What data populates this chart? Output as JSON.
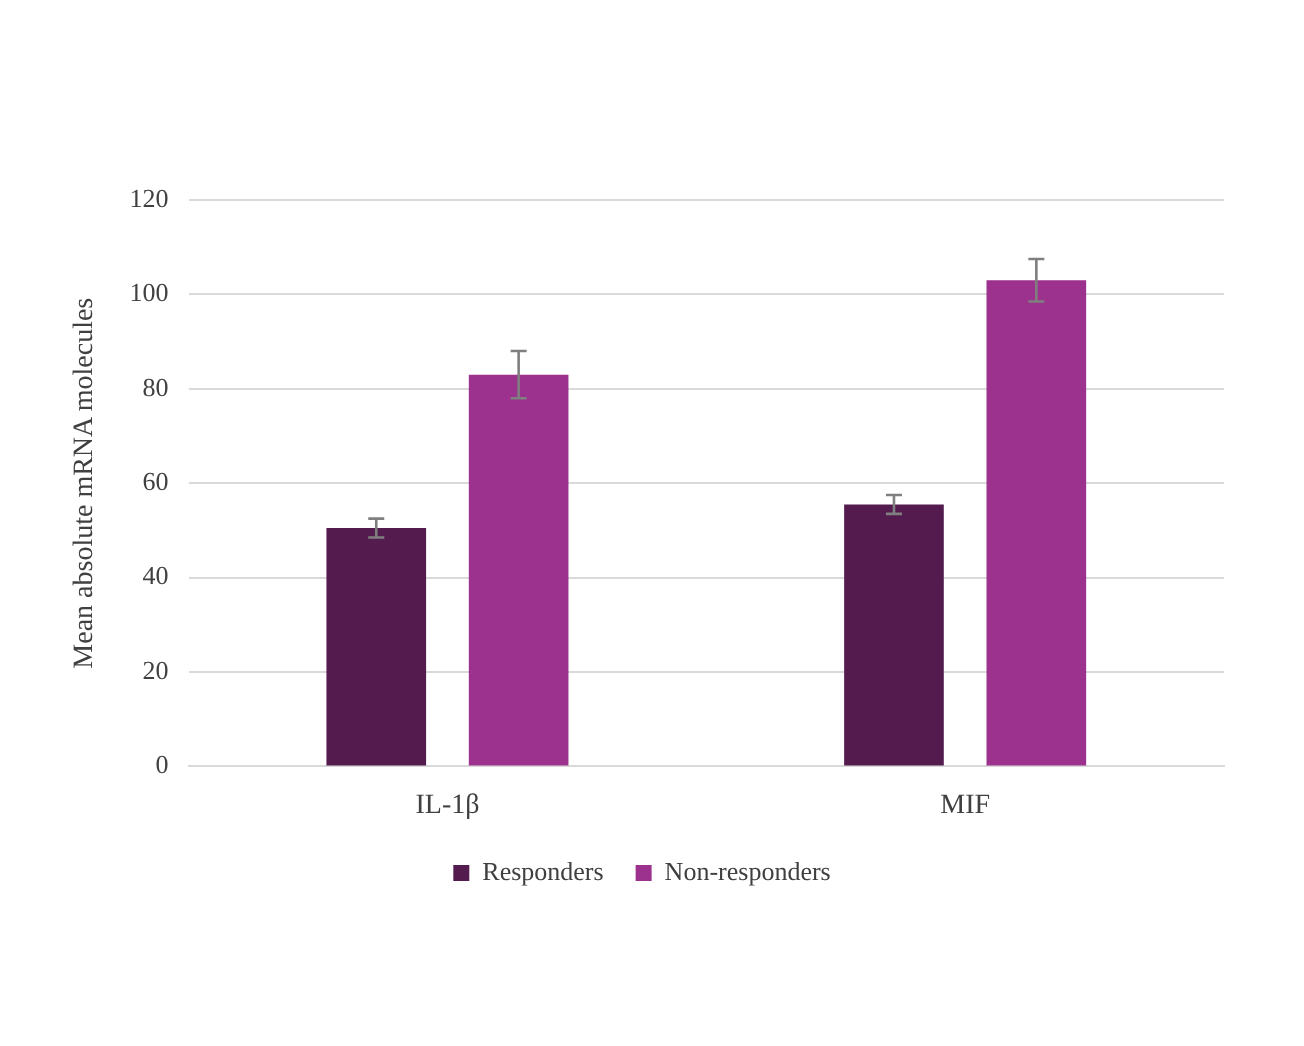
{
  "chart_data": {
    "type": "bar",
    "ylabel": "Mean absolute mRNA molecules",
    "categories": [
      "IL-1β",
      "MIF"
    ],
    "series": [
      {
        "name": "Responders",
        "color": "#541c4e",
        "values": [
          50.5,
          55.5
        ],
        "errors": [
          2,
          2
        ]
      },
      {
        "name": "Non-responders",
        "color": "#9d318e",
        "values": [
          83,
          103
        ],
        "errors": [
          5,
          4.5
        ]
      }
    ],
    "ylim": [
      0,
      120
    ],
    "yticks": [
      0,
      20,
      40,
      60,
      80,
      100,
      120
    ],
    "grid": "y",
    "legend": "bottom"
  }
}
